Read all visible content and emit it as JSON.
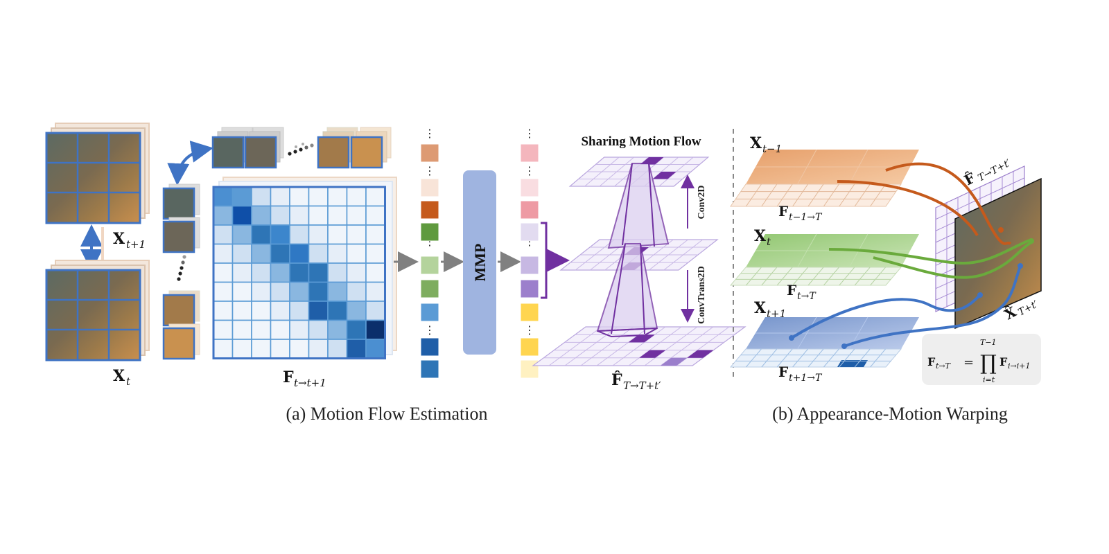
{
  "panel_a": {
    "caption": "(a) Motion Flow Estimation",
    "frame_top_label": "X",
    "frame_top_sub": "t+1",
    "frame_bottom_label": "X",
    "frame_bottom_sub": "t",
    "matrix_label": "F",
    "matrix_sub": "t→t+1",
    "mmp_label": "MMP",
    "sharing_title": "Sharing Motion Flow",
    "conv2d_label": "Conv2D",
    "convtrans_label": "ConvTrans2D",
    "flow_out_label": "F̂",
    "flow_out_sub": "T→T+t′",
    "ellipsis": "⋮",
    "colors": {
      "blue_frame": "#3f73c4",
      "purple": "#7030a0",
      "mmp_fill": "#9fb4e0",
      "gray_arrow": "#808080"
    },
    "tokens_left": [
      "#dd9a73",
      "#f8e4d8",
      "#c55a1c",
      "#5f9a3e",
      "#b4d39c",
      "#7ead5f",
      "#5b9bd5",
      "#1f5ea8",
      "#2e75b6"
    ],
    "tokens_right": [
      "#f4b6bd",
      "#f9dde1",
      "#ee9aa4",
      "#e2dbf0",
      "#c7b8e3",
      "#9c7fcc",
      "#ffd54f",
      "#ffd54f",
      "#fff1c1"
    ]
  },
  "panel_b": {
    "caption": "(b) Appearance-Motion Warping",
    "x_tm1": "X",
    "x_tm1_sub": "t−1",
    "f_tm1": "F",
    "f_tm1_sub": "t−1→T",
    "x_t": "X",
    "x_t_sub": "t",
    "f_t": "F",
    "f_t_sub": "t→T",
    "x_tp1": "X",
    "x_tp1_sub": "t+1",
    "f_tp1": "F",
    "f_tp1_sub": "t+1→T",
    "f_hat": "F̂",
    "f_hat_sub": "T→T+t′",
    "x_hat": "X̂",
    "x_hat_sub": "T+t′",
    "formula_lhs": "F",
    "formula_lhs_sub": "t→T",
    "formula_eq": "=",
    "formula_prod": "∏",
    "formula_upper": "T−1",
    "formula_lower": "i=t",
    "formula_rhs": "F",
    "formula_rhs_sub": "i→i+1"
  }
}
